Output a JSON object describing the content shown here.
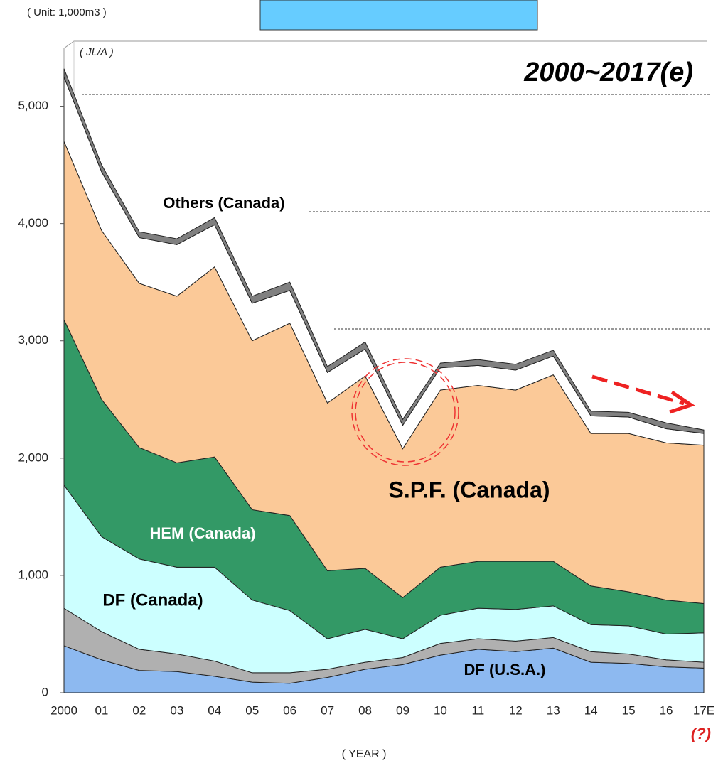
{
  "chart_data": {
    "type": "stacked_area",
    "unit_label": "( Unit: 1,000m3 )",
    "source_label": "( JL/A )",
    "title": "2000~2017(e)",
    "x_label": "( YEAR )",
    "note": "(?)",
    "categories": [
      "2000",
      "01",
      "02",
      "03",
      "04",
      "05",
      "06",
      "07",
      "08",
      "09",
      "10",
      "11",
      "12",
      "13",
      "14",
      "15",
      "16",
      "17E"
    ],
    "ylim": [
      0,
      5500
    ],
    "yticks": [
      0,
      {
        "value": 1000,
        "label": "1,000"
      },
      {
        "value": 2000,
        "label": "2,000"
      },
      {
        "value": 3000,
        "label": "3,000"
      },
      {
        "value": 4000,
        "label": "4,000"
      },
      {
        "value": 5000,
        "label": "5,000"
      }
    ],
    "series": [
      {
        "name": "DF (U.S.A.)",
        "color": "#8db9f0",
        "values": [
          400,
          280,
          190,
          180,
          140,
          90,
          80,
          130,
          200,
          240,
          320,
          370,
          350,
          380,
          260,
          250,
          220,
          210
        ]
      },
      {
        "color": "#b0b0b0",
        "values": [
          320,
          240,
          180,
          150,
          130,
          80,
          90,
          70,
          60,
          60,
          100,
          90,
          90,
          90,
          90,
          80,
          60,
          50
        ]
      },
      {
        "name": "DF (Canada)",
        "color": "#ccffff",
        "values": [
          1050,
          810,
          770,
          740,
          800,
          620,
          530,
          260,
          280,
          160,
          240,
          260,
          270,
          270,
          230,
          240,
          220,
          250
        ]
      },
      {
        "name": "HEM (Canada)",
        "color": "#339966",
        "values": [
          1410,
          1170,
          950,
          890,
          940,
          770,
          810,
          580,
          520,
          350,
          410,
          400,
          410,
          380,
          330,
          290,
          290,
          250
        ]
      },
      {
        "name": "S.P.F. (Canada)",
        "color": "#fbc998",
        "values": [
          1520,
          1440,
          1400,
          1420,
          1620,
          1440,
          1640,
          1430,
          1640,
          1270,
          1510,
          1500,
          1460,
          1590,
          1300,
          1350,
          1340,
          1350
        ]
      },
      {
        "name": "Others (Canada)",
        "color": "#ffffff",
        "values": [
          550,
          500,
          390,
          440,
          360,
          320,
          280,
          260,
          230,
          200,
          190,
          170,
          170,
          160,
          150,
          140,
          120,
          100
        ]
      },
      {
        "color": "#808080",
        "values": [
          70,
          60,
          50,
          50,
          60,
          60,
          70,
          50,
          60,
          50,
          40,
          50,
          50,
          50,
          40,
          40,
          50,
          30
        ]
      }
    ]
  }
}
